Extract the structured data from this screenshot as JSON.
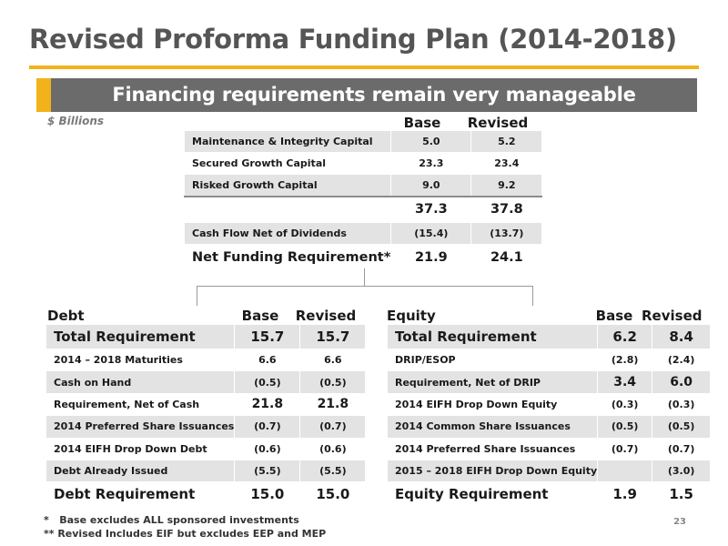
{
  "title": "Revised Proforma Funding Plan (2014-2018)",
  "banner": "Financing requirements remain very manageable",
  "units": "$ Billions",
  "colors": {
    "accent": "#f1b21c",
    "banner_bg": "#6b6b6b",
    "row_shade": "#e3e3e3"
  },
  "summary": {
    "headers": {
      "base": "Base",
      "revised": "Revised"
    },
    "rows": [
      {
        "label": "Maintenance & Integrity Capital",
        "base": "5.0",
        "revised": "5.2"
      },
      {
        "label": "Secured Growth Capital",
        "base": "23.3",
        "revised": "23.4"
      },
      {
        "label": "Risked Growth Capital",
        "base": "9.0",
        "revised": "9.2"
      },
      {
        "label": "",
        "base": "37.3",
        "revised": "37.8"
      },
      {
        "label": "Cash Flow Net of Dividends",
        "base": "(15.4)",
        "revised": "(13.7)"
      },
      {
        "label": "Net Funding Requirement*",
        "base": "21.9",
        "revised": "24.1"
      }
    ]
  },
  "debt": {
    "title": "Debt",
    "headers": {
      "base": "Base",
      "revised": "Revised"
    },
    "rows": [
      {
        "label": "Total Requirement",
        "base": "15.7",
        "revised": "15.7"
      },
      {
        "label": "2014 – 2018 Maturities",
        "base": "6.6",
        "revised": "6.6"
      },
      {
        "label": "Cash on Hand",
        "base": "(0.5)",
        "revised": "(0.5)"
      },
      {
        "label": "Requirement, Net of Cash",
        "base": "21.8",
        "revised": "21.8"
      },
      {
        "label": "2014 Preferred Share Issuances",
        "base": "(0.7)",
        "revised": "(0.7)"
      },
      {
        "label": "2014 EIFH Drop Down Debt",
        "base": "(0.6)",
        "revised": "(0.6)"
      },
      {
        "label": "Debt Already Issued",
        "base": "(5.5)",
        "revised": "(5.5)"
      },
      {
        "label": "Debt Requirement",
        "base": "15.0",
        "revised": "15.0"
      }
    ]
  },
  "equity": {
    "title": "Equity",
    "headers": {
      "base": "Base",
      "revised": "Revised"
    },
    "rows": [
      {
        "label": "Total Requirement",
        "base": "6.2",
        "revised": "8.4"
      },
      {
        "label": "DRIP/ESOP",
        "base": "(2.8)",
        "revised": "(2.4)"
      },
      {
        "label": "Requirement, Net of DRIP",
        "base": "3.4",
        "revised": "6.0"
      },
      {
        "label": "2014 EIFH Drop Down Equity",
        "base": "(0.3)",
        "revised": "(0.3)"
      },
      {
        "label": "2014 Common Share Issuances",
        "base": "(0.5)",
        "revised": "(0.5)"
      },
      {
        "label": "2014 Preferred Share Issuances",
        "base": "(0.7)",
        "revised": "(0.7)"
      },
      {
        "label": "2015 – 2018 EIFH Drop Down Equity",
        "base": "",
        "revised": "(3.0)"
      },
      {
        "label": "Equity Requirement",
        "base": "1.9",
        "revised": "1.5"
      }
    ]
  },
  "footnotes": [
    "*   Base excludes ALL sponsored investments",
    "** Revised Includes EIF but excludes EEP and MEP"
  ],
  "page_number": "23"
}
